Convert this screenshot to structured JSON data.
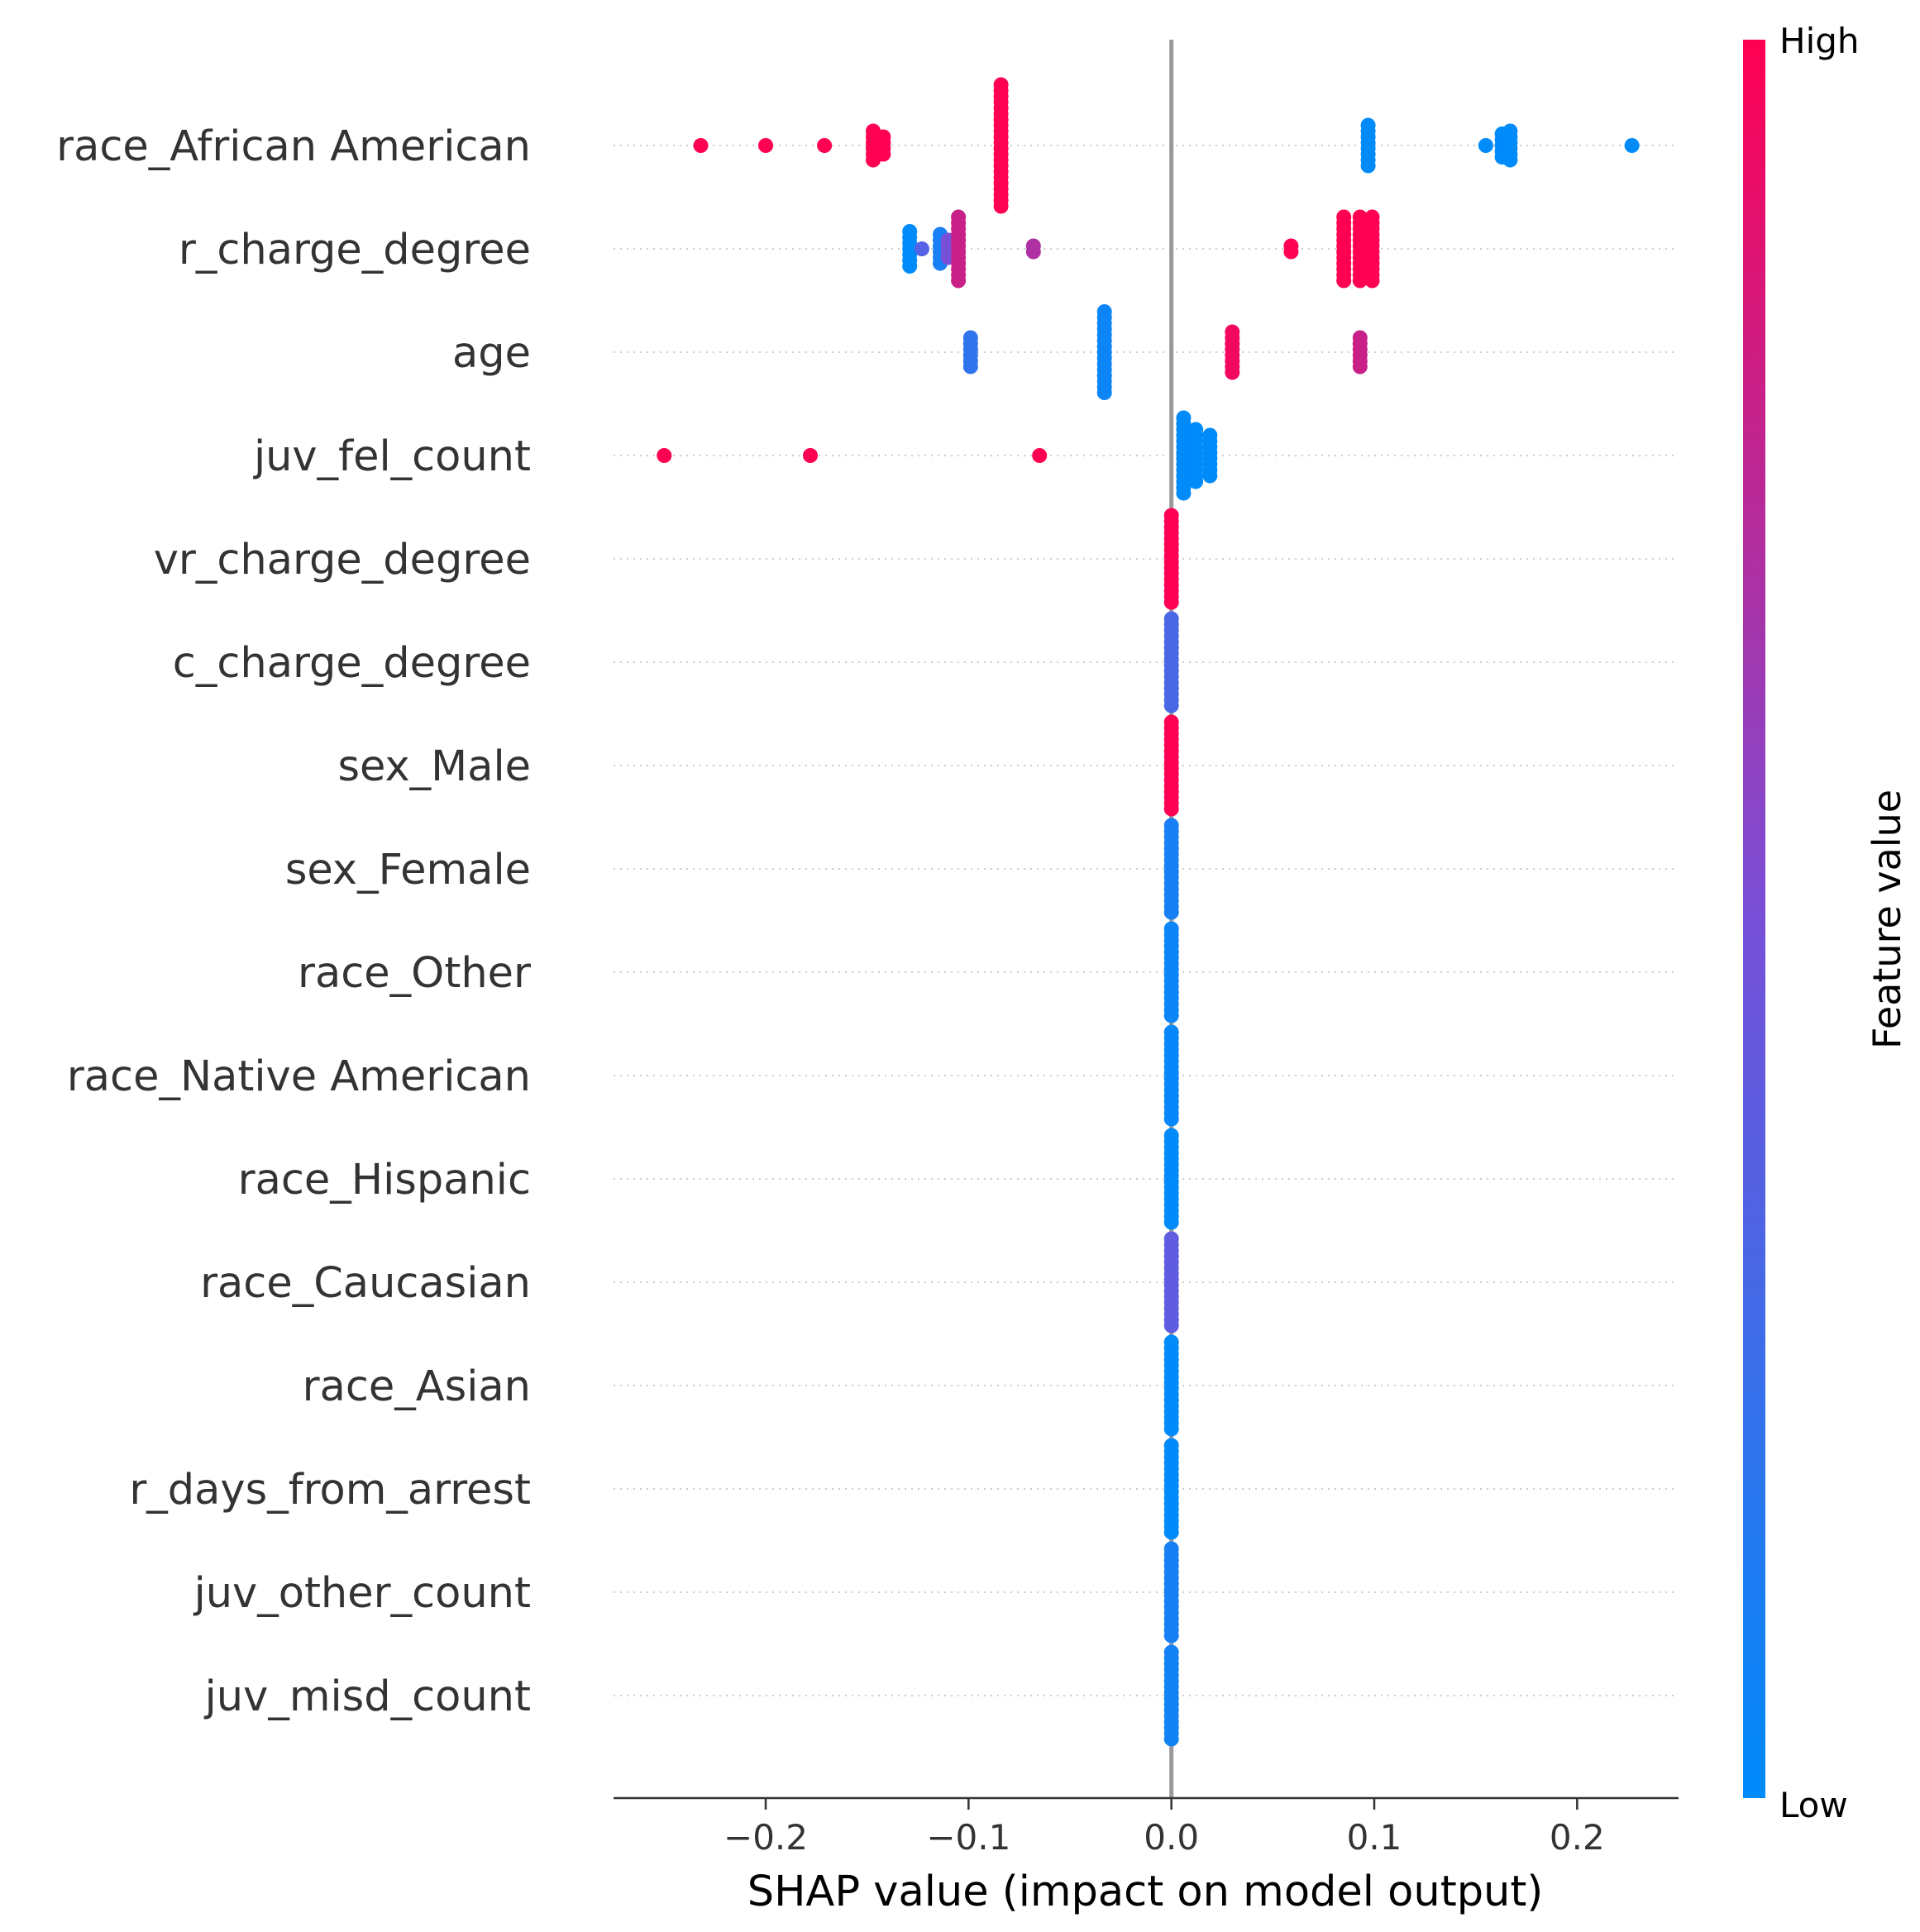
{
  "chart_data": {
    "type": "scatter",
    "subtype": "shap-beeswarm-summary",
    "xlabel": "SHAP value (impact on model output)",
    "xlim": [
      -0.275,
      0.25
    ],
    "xticks": [
      -0.2,
      -0.1,
      0.0,
      0.1,
      0.2
    ],
    "xtick_labels": [
      "−0.2",
      "−0.1",
      "0.0",
      "0.1",
      "0.2"
    ],
    "colorbar": {
      "title": "Feature value",
      "high_label": "High",
      "low_label": "Low",
      "high_color": "#ff0052",
      "low_color": "#008bfb"
    },
    "zero_line_color": "#999999",
    "features": [
      {
        "name": "race_African American",
        "clusters": [
          {
            "x": -0.232,
            "v": 1.0,
            "n": 1
          },
          {
            "x": -0.2,
            "v": 1.0,
            "n": 1
          },
          {
            "x": -0.171,
            "v": 1.0,
            "n": 1
          },
          {
            "x": -0.147,
            "v": 1.0,
            "n": 6
          },
          {
            "x": -0.142,
            "v": 1.0,
            "n": 4
          },
          {
            "x": -0.084,
            "v": 1.0,
            "n": 22
          },
          {
            "x": 0.097,
            "v": 0.0,
            "n": 8
          },
          {
            "x": 0.155,
            "v": 0.0,
            "n": 1
          },
          {
            "x": 0.163,
            "v": 0.0,
            "n": 5
          },
          {
            "x": 0.167,
            "v": 0.0,
            "n": 6
          },
          {
            "x": 0.227,
            "v": 0.0,
            "n": 1
          }
        ]
      },
      {
        "name": "r_charge_degree",
        "clusters": [
          {
            "x": -0.129,
            "v": 0.0,
            "n": 7
          },
          {
            "x": -0.123,
            "v": 0.35,
            "n": 1
          },
          {
            "x": -0.114,
            "v": 0.1,
            "n": 6
          },
          {
            "x": -0.11,
            "v": 0.5,
            "n": 4
          },
          {
            "x": -0.105,
            "v": 0.8,
            "n": 12
          },
          {
            "x": -0.068,
            "v": 0.7,
            "n": 2
          },
          {
            "x": 0.059,
            "v": 1.0,
            "n": 2
          },
          {
            "x": 0.085,
            "v": 1.0,
            "n": 12
          },
          {
            "x": 0.093,
            "v": 1.0,
            "n": 12
          },
          {
            "x": 0.099,
            "v": 1.0,
            "n": 12
          }
        ]
      },
      {
        "name": "age",
        "clusters": [
          {
            "x": -0.099,
            "v": 0.2,
            "n": 6
          },
          {
            "x": -0.033,
            "v": 0.05,
            "n": 15
          },
          {
            "x": 0.03,
            "v": 0.95,
            "n": 8
          },
          {
            "x": 0.093,
            "v": 0.8,
            "n": 6
          }
        ]
      },
      {
        "name": "juv_fel_count",
        "clusters": [
          {
            "x": -0.25,
            "v": 1.0,
            "n": 1
          },
          {
            "x": -0.178,
            "v": 1.0,
            "n": 1
          },
          {
            "x": -0.065,
            "v": 1.0,
            "n": 1
          },
          {
            "x": 0.006,
            "v": 0.0,
            "n": 14
          },
          {
            "x": 0.012,
            "v": 0.0,
            "n": 10
          },
          {
            "x": 0.019,
            "v": 0.0,
            "n": 8
          }
        ]
      },
      {
        "name": "vr_charge_degree",
        "clusters": [
          {
            "x": 0.0,
            "v": 1.0,
            "n": 16
          }
        ]
      },
      {
        "name": "c_charge_degree",
        "clusters": [
          {
            "x": 0.0,
            "v": 0.3,
            "n": 16
          }
        ]
      },
      {
        "name": "sex_Male",
        "clusters": [
          {
            "x": 0.0,
            "v": 1.0,
            "n": 16
          }
        ]
      },
      {
        "name": "sex_Female",
        "clusters": [
          {
            "x": 0.0,
            "v": 0.1,
            "n": 16
          }
        ]
      },
      {
        "name": "race_Other",
        "clusters": [
          {
            "x": 0.0,
            "v": 0.05,
            "n": 16
          }
        ]
      },
      {
        "name": "race_Native American",
        "clusters": [
          {
            "x": 0.0,
            "v": 0.03,
            "n": 16
          }
        ]
      },
      {
        "name": "race_Hispanic",
        "clusters": [
          {
            "x": 0.0,
            "v": 0.0,
            "n": 16
          }
        ]
      },
      {
        "name": "race_Caucasian",
        "clusters": [
          {
            "x": 0.0,
            "v": 0.4,
            "n": 16
          }
        ]
      },
      {
        "name": "race_Asian",
        "clusters": [
          {
            "x": 0.0,
            "v": 0.0,
            "n": 16
          }
        ]
      },
      {
        "name": "r_days_from_arrest",
        "clusters": [
          {
            "x": 0.0,
            "v": 0.0,
            "n": 16
          }
        ]
      },
      {
        "name": "juv_other_count",
        "clusters": [
          {
            "x": 0.0,
            "v": 0.1,
            "n": 16
          }
        ]
      },
      {
        "name": "juv_misd_count",
        "clusters": [
          {
            "x": 0.0,
            "v": 0.08,
            "n": 16
          }
        ]
      }
    ]
  }
}
